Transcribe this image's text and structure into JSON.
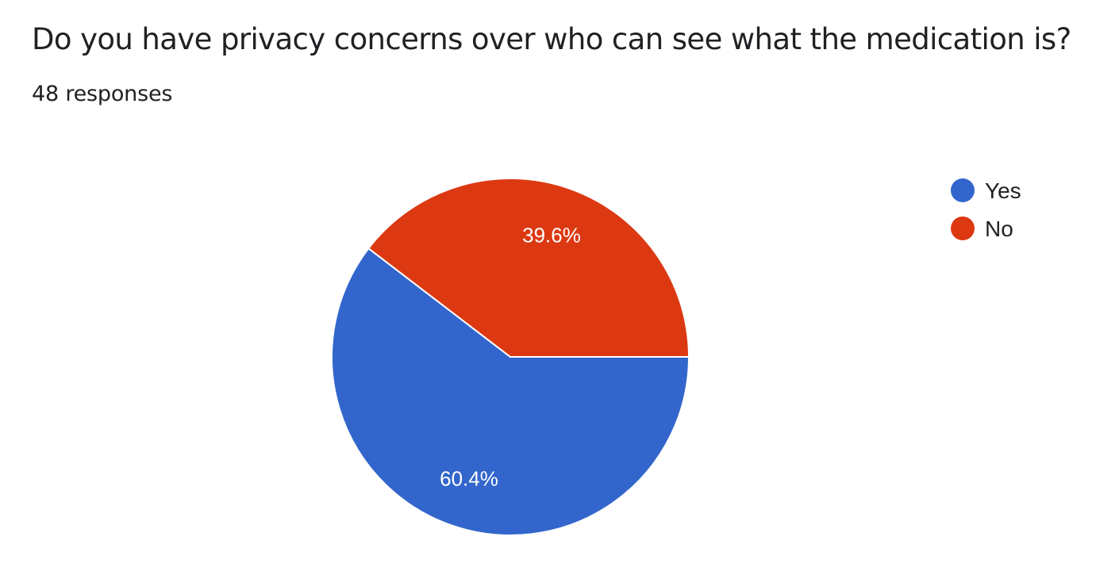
{
  "header": {
    "question": "Do you have privacy concerns over who can see what the medication is?",
    "responses": "48 responses"
  },
  "chart_data": {
    "type": "pie",
    "categories": [
      "Yes",
      "No"
    ],
    "values": [
      60.4,
      39.6
    ],
    "labels": [
      "60.4%",
      "39.6%"
    ],
    "colors": [
      "#3366cc",
      "#dc3912"
    ],
    "legend_position": "right"
  }
}
